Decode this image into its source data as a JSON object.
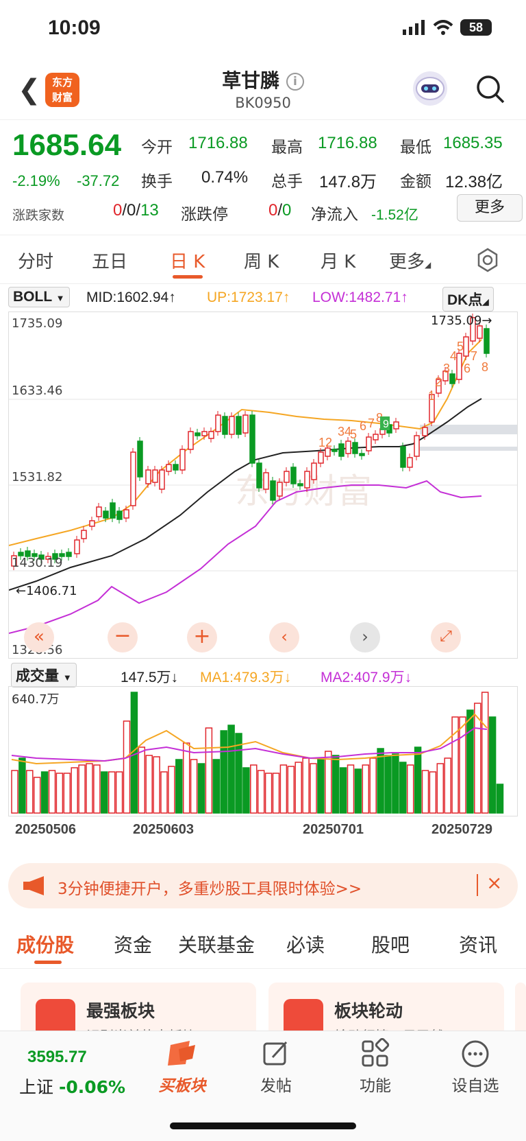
{
  "status": {
    "time": "10:09",
    "battery": "58"
  },
  "header": {
    "title": "草甘膦",
    "code": "BK0950",
    "logo_text": "东方财富"
  },
  "quote": {
    "price": "1685.64",
    "change_pct": "-2.19%",
    "change": "-37.72",
    "fields": [
      {
        "label": "今开",
        "value": "1716.88"
      },
      {
        "label": "最高",
        "value": "1716.88"
      },
      {
        "label": "最低",
        "value": "1685.35"
      },
      {
        "label": "换手",
        "value": "0.74%"
      },
      {
        "label": "总手",
        "value": "147.8万"
      },
      {
        "label": "金额",
        "value": "12.38亿"
      }
    ],
    "rise_fall_label": "涨跌家数",
    "rise": "0",
    "flat": "0",
    "fall": "13",
    "limit_label": "涨跌停",
    "limit_up": "0",
    "limit_down": "0",
    "netflow_label": "净流入",
    "netflow": "-1.52亿",
    "more": "更多"
  },
  "tabs": [
    "分时",
    "五日",
    "日 K",
    "周 K",
    "月 K",
    "更多"
  ],
  "boll": {
    "indicator": "BOLL",
    "mid": "MID:1602.94↑",
    "up": "UP:1723.17↑",
    "low": "LOW:1482.71↑",
    "dk": "DK点",
    "levels": [
      "1735.09",
      "1633.46",
      "1531.82",
      "1430.19",
      "1328.56"
    ],
    "max_label": "1735.09→",
    "min_label": "←1406.71"
  },
  "volume": {
    "indicator": "成交量",
    "vol": "147.5万↓",
    "ma1": "MA1:479.3万↓",
    "ma2": "MA2:407.9万↓",
    "max": "640.7万"
  },
  "dates": [
    "20250506",
    "20250603",
    "20250701",
    "20250729"
  ],
  "banner": {
    "text": "3分钟便捷开户，多重炒股工具限时体验>>"
  },
  "section_tabs": [
    "成份股",
    "资金",
    "关联基金",
    "必读",
    "股吧",
    "资讯"
  ],
  "cards": [
    {
      "title": "最强板块",
      "sub": "识别当前热点板块"
    },
    {
      "title": "板块轮动",
      "sub": "轮动行情一目了然"
    }
  ],
  "bottom": {
    "index_value": "3595.77",
    "index_name": "上证",
    "index_change": "-0.06%",
    "nav": [
      "买板块",
      "发帖",
      "功能",
      "设自选"
    ]
  },
  "colors": {
    "accent": "#e8592a",
    "up": "#e0252b",
    "down": "#0a9a23",
    "boll_up": "#f5a623",
    "boll_low": "#c42fd6"
  }
}
